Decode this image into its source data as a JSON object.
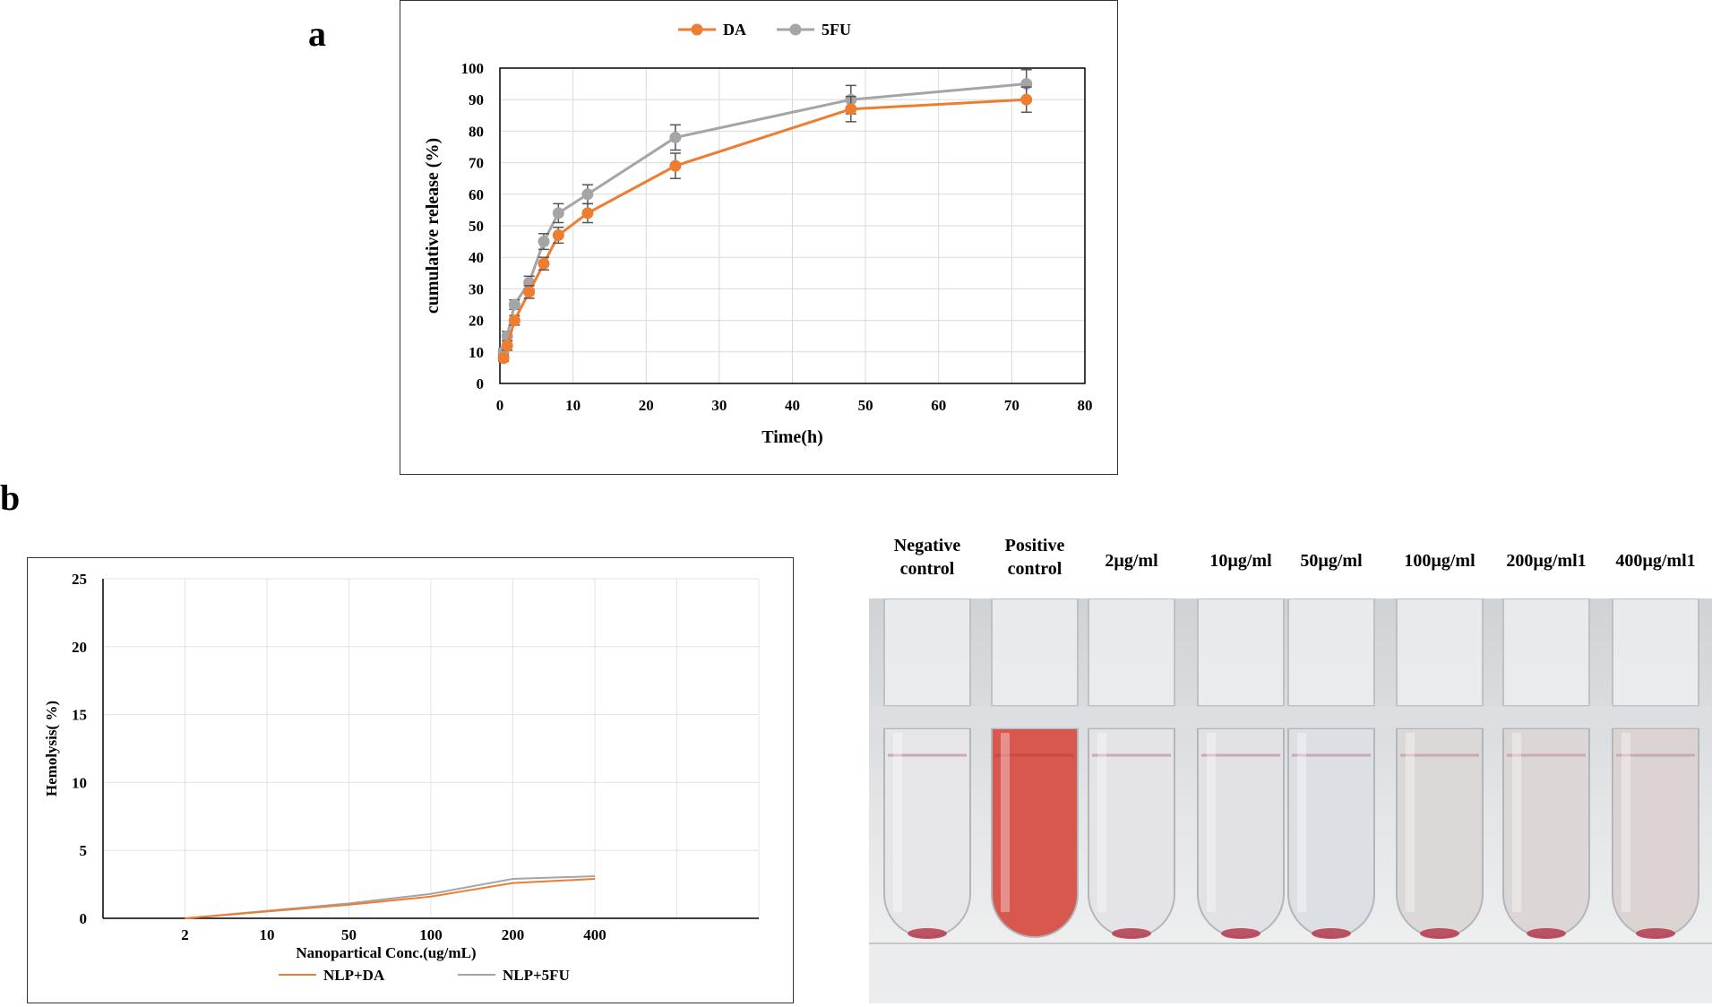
{
  "panel_a_label": "a",
  "panel_b_label": "b",
  "chart_data": [
    {
      "type": "line",
      "xlabel": "Time(h)",
      "ylabel": "cumulative release (%)",
      "xlim": [
        0,
        80
      ],
      "ylim": [
        0,
        100
      ],
      "x_ticks": [
        0,
        10,
        20,
        30,
        40,
        50,
        60,
        70,
        80
      ],
      "y_ticks": [
        0,
        10,
        20,
        30,
        40,
        50,
        60,
        70,
        80,
        90,
        100
      ],
      "grid": true,
      "legend": "top",
      "series": [
        {
          "name": "DA",
          "color": "#ED7D31",
          "x": [
            0.5,
            1,
            2,
            4,
            6,
            8,
            12,
            24,
            48,
            72
          ],
          "y": [
            8,
            12,
            20,
            29,
            38,
            47,
            54,
            69,
            87,
            90
          ],
          "error": [
            1,
            1.5,
            1.5,
            2,
            2,
            2.5,
            3,
            4,
            4,
            4
          ]
        },
        {
          "name": "5FU",
          "color": "#A5A5A5",
          "x": [
            0.5,
            1,
            2,
            4,
            6,
            8,
            12,
            24,
            48,
            72
          ],
          "y": [
            10,
            15,
            25,
            32,
            45,
            54,
            60,
            78,
            90,
            95
          ],
          "error": [
            1,
            1.5,
            1.5,
            2,
            2.5,
            3,
            3,
            4,
            4.5,
            4.5
          ]
        }
      ]
    },
    {
      "type": "line",
      "xlabel": "Nanopartical Conc.(ug/mL)",
      "ylabel": "Hemolysis( %)",
      "categories": [
        "2",
        "10",
        "50",
        "100",
        "200",
        "400"
      ],
      "ylim": [
        0,
        25
      ],
      "y_ticks": [
        0,
        5,
        10,
        15,
        20,
        25
      ],
      "grid": true,
      "legend": "bottom",
      "series": [
        {
          "name": "NLP+DA",
          "color": "#ED7D31",
          "values": [
            0,
            0.5,
            1.0,
            1.6,
            2.6,
            2.9
          ]
        },
        {
          "name": "NLP+5FU",
          "color": "#A5A5A5",
          "values": [
            0,
            0.55,
            1.1,
            1.8,
            2.9,
            3.1
          ]
        }
      ]
    }
  ],
  "photo": {
    "labels": [
      "Negative\ncontrol",
      "Positive\ncontrol",
      "2µg/ml",
      "10µg/ml",
      "50µg/ml",
      "100µg/ml",
      "200µg/ml1",
      "400µg/ml1"
    ],
    "tube_colors": [
      "#e6e6ea",
      "#d8574f",
      "#e4e4e8",
      "#e2e2e6",
      "#dcdfe3",
      "#dcd8d8",
      "#ddd6d6",
      "#dcd3d3"
    ],
    "pellet_color": "#b53a4c"
  }
}
